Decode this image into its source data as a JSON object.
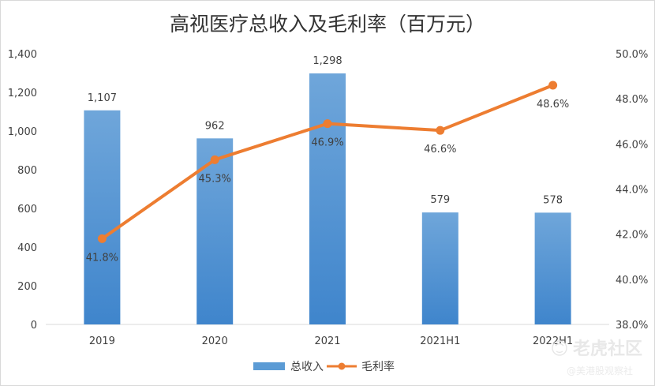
{
  "chart_data": {
    "type": "bar",
    "title": "高视医疗总收入及毛利率（百万元）",
    "categories": [
      "2019",
      "2020",
      "2021",
      "2021H1",
      "2022H1"
    ],
    "series": [
      {
        "name": "总收入",
        "type": "bar",
        "axis": "left",
        "color": "#5b9bd5",
        "values": [
          1107,
          962,
          1298,
          579,
          578
        ],
        "labels": [
          "1,107",
          "962",
          "1,298",
          "579",
          "578"
        ]
      },
      {
        "name": "毛利率",
        "type": "line",
        "axis": "right",
        "color": "#ed7d31",
        "values": [
          41.8,
          45.3,
          46.9,
          46.6,
          48.6
        ],
        "labels": [
          "41.8%",
          "45.3%",
          "46.9%",
          "46.6%",
          "48.6%"
        ]
      }
    ],
    "y_left": {
      "range": [
        0,
        1400
      ],
      "ticks": [
        0,
        200,
        400,
        600,
        800,
        1000,
        1200,
        1400
      ],
      "tick_labels": [
        "0",
        "200",
        "400",
        "600",
        "800",
        "1,000",
        "1,200",
        "1,400"
      ]
    },
    "y_right": {
      "range": [
        38,
        50
      ],
      "ticks": [
        38,
        40,
        42,
        44,
        46,
        48,
        50
      ],
      "tick_labels": [
        "38.0%",
        "40.0%",
        "42.0%",
        "44.0%",
        "46.0%",
        "48.0%",
        "50.0%"
      ]
    },
    "legend": [
      "总收入",
      "毛利率"
    ],
    "legend_position": "bottom",
    "grid": false
  },
  "watermark": {
    "main": "老虎社区",
    "sub": "@美港股观察社",
    "icon": "tiger-community-icon"
  }
}
